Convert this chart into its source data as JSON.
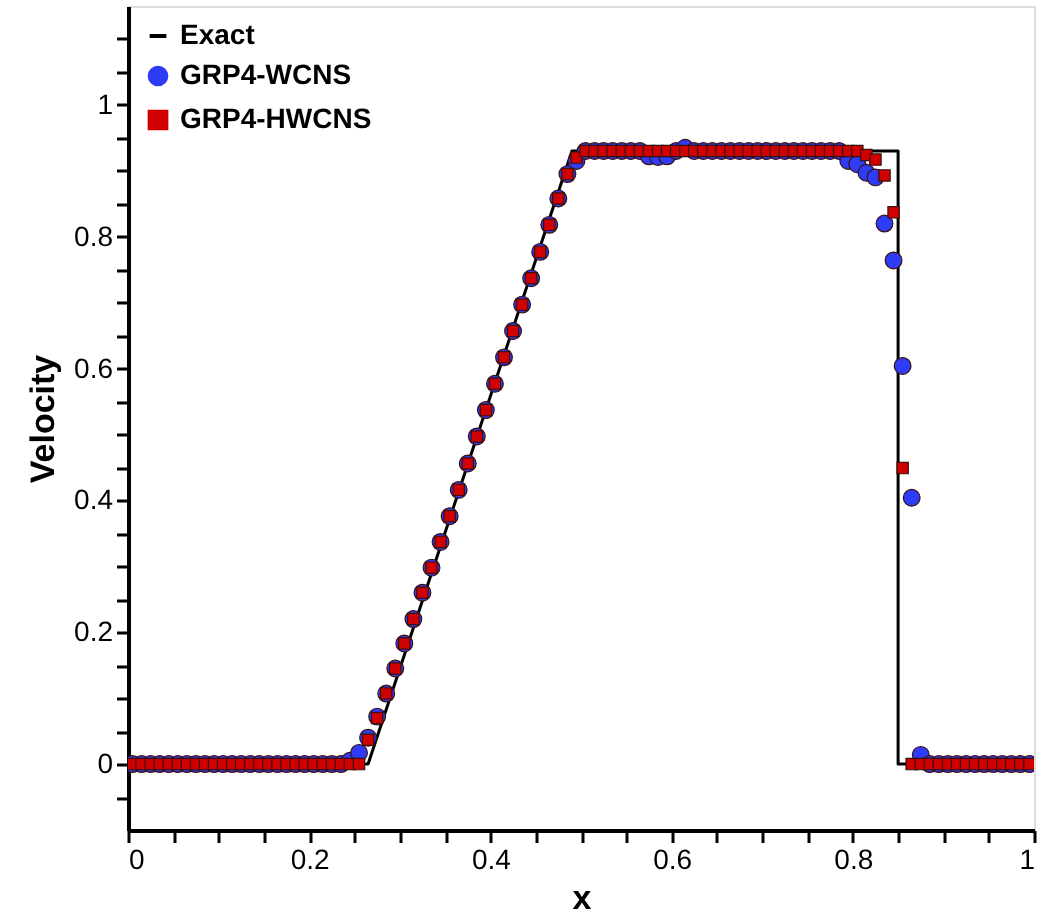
{
  "chart_data": {
    "type": "scatter",
    "xlabel": "x",
    "ylabel": "Velocity",
    "xlim": [
      0,
      1
    ],
    "ylim": [
      -0.1,
      1.15
    ],
    "xticks": [
      0,
      {
        "value": 0.05,
        "label": null
      },
      {
        "value": 0.1,
        "label": null
      },
      {
        "value": 0.15,
        "label": null
      },
      0.2,
      {
        "value": 0.25,
        "label": null
      },
      {
        "value": 0.3,
        "label": null
      },
      {
        "value": 0.35,
        "label": null
      },
      0.4,
      {
        "value": 0.45,
        "label": null
      },
      {
        "value": 0.5,
        "label": null
      },
      {
        "value": 0.55,
        "label": null
      },
      0.6,
      {
        "value": 0.65,
        "label": null
      },
      {
        "value": 0.7,
        "label": null
      },
      {
        "value": 0.75,
        "label": null
      },
      0.8,
      {
        "value": 0.85,
        "label": null
      },
      {
        "value": 0.9,
        "label": null
      },
      {
        "value": 0.95,
        "label": null
      },
      1
    ],
    "yticks": [
      {
        "value": -0.05,
        "label": null
      },
      0,
      {
        "value": 0.05,
        "label": null
      },
      {
        "value": 0.1,
        "label": null
      },
      {
        "value": 0.15,
        "label": null
      },
      0.2,
      {
        "value": 0.25,
        "label": null
      },
      {
        "value": 0.3,
        "label": null
      },
      {
        "value": 0.35,
        "label": null
      },
      0.4,
      {
        "value": 0.45,
        "label": null
      },
      {
        "value": 0.5,
        "label": null
      },
      {
        "value": 0.55,
        "label": null
      },
      0.6,
      {
        "value": 0.65,
        "label": null
      },
      {
        "value": 0.7,
        "label": null
      },
      {
        "value": 0.75,
        "label": null
      },
      0.8,
      {
        "value": 0.85,
        "label": null
      },
      {
        "value": 0.9,
        "label": null
      },
      {
        "value": 0.95,
        "label": null
      },
      1,
      {
        "value": 1.05,
        "label": null
      },
      {
        "value": 1.1,
        "label": null
      }
    ],
    "grid": false,
    "legend": "top left",
    "x": [
      0.005,
      0.015,
      0.025,
      0.035,
      0.045,
      0.055,
      0.065,
      0.075,
      0.085,
      0.095,
      0.105,
      0.115,
      0.125,
      0.135,
      0.145,
      0.155,
      0.165,
      0.175,
      0.185,
      0.195,
      0.205,
      0.215,
      0.225,
      0.235,
      0.245,
      0.255,
      0.265,
      0.275,
      0.285,
      0.295,
      0.305,
      0.315,
      0.325,
      0.335,
      0.345,
      0.355,
      0.365,
      0.375,
      0.385,
      0.395,
      0.405,
      0.415,
      0.425,
      0.435,
      0.445,
      0.455,
      0.465,
      0.475,
      0.485,
      0.495,
      0.505,
      0.515,
      0.525,
      0.535,
      0.545,
      0.555,
      0.565,
      0.575,
      0.585,
      0.595,
      0.605,
      0.615,
      0.625,
      0.635,
      0.645,
      0.655,
      0.665,
      0.675,
      0.685,
      0.695,
      0.705,
      0.715,
      0.725,
      0.735,
      0.745,
      0.755,
      0.765,
      0.775,
      0.785,
      0.795,
      0.805,
      0.815,
      0.825,
      0.835,
      0.845,
      0.855,
      0.865,
      0.875,
      0.885,
      0.895,
      0.905,
      0.915,
      0.925,
      0.935,
      0.945,
      0.955,
      0.965,
      0.975,
      0.985,
      0.995
    ],
    "series": [
      {
        "name": "Exact",
        "type": "line",
        "color": "#000000",
        "line_style": "solid",
        "x": [
          0,
          0.265,
          0.49,
          0.85,
          0.85,
          1
        ],
        "values": [
          0,
          0,
          0.93,
          0.93,
          0,
          0
        ]
      },
      {
        "name": "GRP4-WCNS",
        "marker": "circle",
        "color": "#2e3cf5",
        "values": [
          0,
          0,
          0,
          0,
          0,
          0,
          0,
          0,
          0,
          0,
          0,
          0,
          0,
          0,
          0,
          0,
          0,
          0,
          0,
          0,
          0,
          0,
          0,
          0,
          0.005,
          0.017,
          0.04,
          0.072,
          0.107,
          0.145,
          0.183,
          0.22,
          0.26,
          0.298,
          0.337,
          0.376,
          0.416,
          0.456,
          0.497,
          0.537,
          0.577,
          0.617,
          0.657,
          0.697,
          0.737,
          0.777,
          0.818,
          0.858,
          0.895,
          0.915,
          0.93,
          0.93,
          0.93,
          0.93,
          0.93,
          0.93,
          0.93,
          0.922,
          0.921,
          0.922,
          0.93,
          0.935,
          0.93,
          0.93,
          0.93,
          0.93,
          0.93,
          0.93,
          0.93,
          0.93,
          0.93,
          0.93,
          0.93,
          0.93,
          0.93,
          0.93,
          0.93,
          0.93,
          0.93,
          0.915,
          0.91,
          0.897,
          0.89,
          0.82,
          0.764,
          0.604,
          0.404,
          0.014,
          0,
          0,
          0,
          0,
          0,
          0,
          0,
          0,
          0,
          0,
          0,
          0
        ]
      },
      {
        "name": "GRP4-HWCNS",
        "marker": "square",
        "color": "#d10000",
        "values": [
          0,
          0,
          0,
          0,
          0,
          0,
          0,
          0,
          0,
          0,
          0,
          0,
          0,
          0,
          0,
          0,
          0,
          0,
          0,
          0,
          0,
          0,
          0,
          0,
          0,
          0,
          0.037,
          0.07,
          0.107,
          0.145,
          0.183,
          0.22,
          0.26,
          0.298,
          0.337,
          0.376,
          0.416,
          0.456,
          0.497,
          0.537,
          0.577,
          0.617,
          0.657,
          0.697,
          0.737,
          0.777,
          0.818,
          0.858,
          0.895,
          0.92,
          0.93,
          0.93,
          0.93,
          0.93,
          0.93,
          0.93,
          0.93,
          0.93,
          0.93,
          0.93,
          0.93,
          0.93,
          0.93,
          0.93,
          0.93,
          0.93,
          0.93,
          0.93,
          0.93,
          0.93,
          0.93,
          0.93,
          0.93,
          0.93,
          0.93,
          0.93,
          0.93,
          0.93,
          0.93,
          0.93,
          0.93,
          0.924,
          0.917,
          0.893,
          0.837,
          0.449,
          0,
          0,
          0,
          0,
          0,
          0,
          0,
          0,
          0,
          0,
          0,
          0,
          0,
          0
        ]
      }
    ]
  }
}
